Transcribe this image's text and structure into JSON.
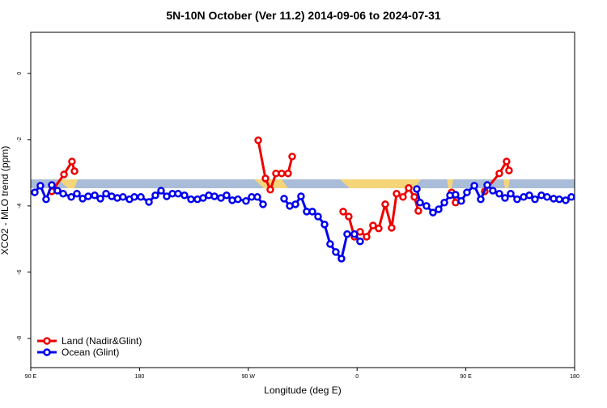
{
  "chart_data": {
    "type": "line",
    "title": "5N-10N October (Ver 11.2)   2014-09-06 to 2024-07-31",
    "x_label": "Longitude (deg E)",
    "y_label": "XCO2 - MLO trend (ppm)",
    "xlim": [
      90,
      540
    ],
    "ylim": [
      -8.88,
      1.24
    ],
    "xticks": [
      {
        "value": 90,
        "label": "90 E"
      },
      180,
      {
        "value": 270,
        "label": "90 W"
      },
      {
        "value": 360,
        "label": "0"
      },
      {
        "value": 450,
        "label": "90 E"
      },
      {
        "value": 540,
        "label": "180"
      }
    ],
    "yticks": [
      0,
      -2,
      -4,
      -6,
      -8
    ],
    "legend": "bottom-left",
    "series": [
      {
        "name": "Land (Nadir&Glint)",
        "color": "#ee0000",
        "x": [
          107.4,
          117.5,
          124.1,
          126.2,
          null,
          278.2,
          284.2,
          288.2,
          292.9,
          297.6,
          302.9,
          306.3,
          null,
          348.5,
          353.1,
          357.8,
          362.5,
          367.9,
          373.2,
          377.9,
          383.3,
          388.6,
          392.7,
          398.0,
          402.7,
          407.4,
          410.7,
          null,
          438.2,
          441.5,
          null,
          465.6,
          477.7,
          483.7,
          485.7
        ],
        "values": [
          -3.56,
          -3.05,
          -2.66,
          -2.95,
          null,
          -2.02,
          -3.17,
          -3.51,
          -3.02,
          -3.02,
          -3.02,
          -2.51,
          null,
          -4.17,
          -4.32,
          -4.93,
          -4.78,
          -4.93,
          -4.59,
          -4.68,
          -3.95,
          -4.66,
          -3.63,
          -3.73,
          -3.46,
          -3.73,
          -4.15,
          null,
          -3.59,
          -3.9,
          null,
          -3.56,
          -3.02,
          -2.66,
          -2.93
        ]
      },
      {
        "name": "Ocean (Glint)",
        "color": "#0000ee",
        "x": [
          93.3,
          98.0,
          102.7,
          107.4,
          112.1,
          116.8,
          123.5,
          128.2,
          132.9,
          137.5,
          142.9,
          147.6,
          152.3,
          157.0,
          161.6,
          166.3,
          171.7,
          175.7,
          181.1,
          187.8,
          193.1,
          197.8,
          202.5,
          207.2,
          211.9,
          217.2,
          222.6,
          227.9,
          232.6,
          237.3,
          242.0,
          247.4,
          252.0,
          256.7,
          261.4,
          268.1,
          272.8,
          277.5,
          282.2,
          null,
          299.6,
          304.3,
          309.0,
          313.6,
          318.3,
          323.0,
          327.7,
          333.1,
          337.7,
          342.4,
          347.1,
          351.8,
          357.8,
          362.5,
          null,
          409.4,
          412.1,
          417.4,
          422.8,
          427.5,
          432.2,
          436.9,
          441.5,
          446.2,
          450.9,
          457.0,
          462.3,
          467.7,
          472.3,
          477.7,
          482.4,
          487.1,
          492.4,
          497.8,
          502.5,
          507.2,
          512.5,
          517.2,
          522.6,
          527.3,
          532.6,
          537.3
        ],
        "values": [
          -3.59,
          -3.39,
          -3.8,
          -3.37,
          -3.54,
          -3.63,
          -3.73,
          -3.63,
          -3.78,
          -3.71,
          -3.68,
          -3.78,
          -3.63,
          -3.71,
          -3.76,
          -3.73,
          -3.8,
          -3.73,
          -3.73,
          -3.88,
          -3.68,
          -3.54,
          -3.71,
          -3.63,
          -3.63,
          -3.68,
          -3.8,
          -3.8,
          -3.76,
          -3.68,
          -3.71,
          -3.76,
          -3.68,
          -3.83,
          -3.8,
          -3.85,
          -3.73,
          -3.73,
          -3.95,
          null,
          -3.78,
          -4.0,
          -3.95,
          -3.71,
          -4.17,
          -4.17,
          -4.32,
          -4.56,
          -5.15,
          -5.39,
          -5.59,
          -4.85,
          -4.85,
          -5.07,
          null,
          -3.49,
          -3.9,
          -4.0,
          -4.2,
          -4.1,
          -3.9,
          -3.68,
          -3.66,
          -3.85,
          -3.59,
          -3.39,
          -3.8,
          -3.37,
          -3.54,
          -3.63,
          -3.76,
          -3.63,
          -3.8,
          -3.73,
          -3.68,
          -3.8,
          -3.68,
          -3.73,
          -3.78,
          -3.8,
          -3.83,
          -3.73
        ]
      }
    ]
  }
}
